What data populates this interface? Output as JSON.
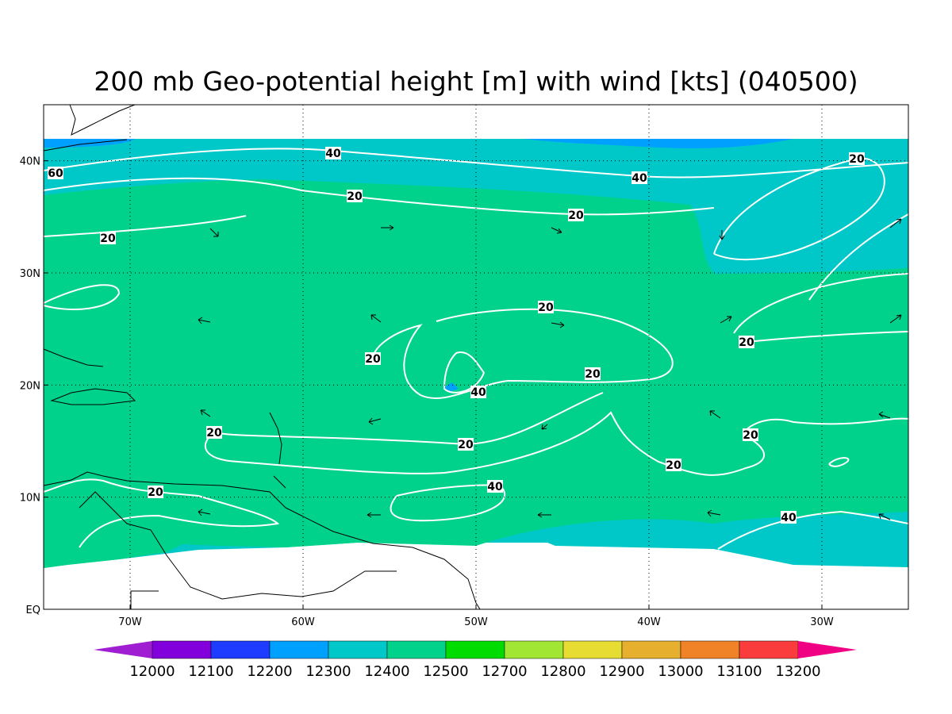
{
  "map": {
    "title": "200 mb Geo-potential height [m] with wind [kts] (040500)",
    "xlim": [
      -75,
      -25
    ],
    "ylim": [
      0,
      45
    ],
    "xticks": [
      {
        "value": -70,
        "label": "70W"
      },
      {
        "value": -60,
        "label": "60W"
      },
      {
        "value": -50,
        "label": "50W"
      },
      {
        "value": -40,
        "label": "40W"
      },
      {
        "value": -30,
        "label": "30W"
      }
    ],
    "yticks": [
      {
        "value": 0,
        "label": "EQ"
      },
      {
        "value": 10,
        "label": "10N"
      },
      {
        "value": 20,
        "label": "20N"
      },
      {
        "value": 30,
        "label": "30N"
      },
      {
        "value": 40,
        "label": "40N"
      }
    ],
    "grid": true,
    "colorbar": {
      "levels": [
        12000,
        12100,
        12200,
        12300,
        12400,
        12500,
        12700,
        12800,
        12900,
        13000,
        13100,
        13200
      ],
      "colors": [
        "#a01ed2",
        "#8200dc",
        "#1e3cff",
        "#00a0ff",
        "#00c8c8",
        "#00d28c",
        "#00dc00",
        "#a0e632",
        "#e6dc32",
        "#e6af2d",
        "#f08228",
        "#fa3c3c",
        "#f00082"
      ]
    },
    "contour_labels": [
      60,
      40,
      40,
      20,
      20,
      20,
      20,
      20,
      20,
      20,
      20,
      40,
      20,
      20,
      20,
      20,
      20,
      40,
      40
    ]
  }
}
